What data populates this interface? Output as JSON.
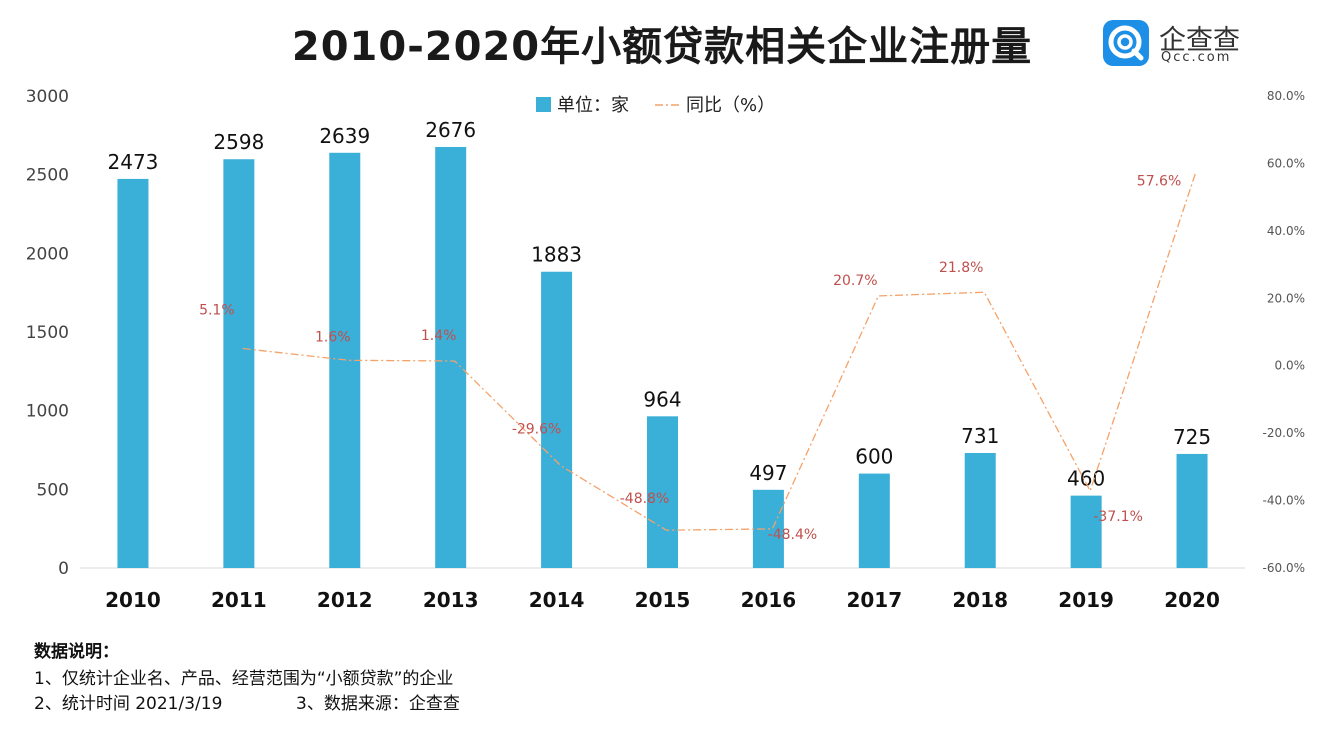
{
  "title": "2010-2020年小额贷款相关企业注册量",
  "logo": {
    "name": "企查查",
    "domain": "Qcc.com"
  },
  "chart_data": {
    "type": "bar",
    "title": "2010-2020年小额贷款相关企业注册量",
    "categories": [
      "2010",
      "2011",
      "2012",
      "2013",
      "2014",
      "2015",
      "2016",
      "2017",
      "2018",
      "2019",
      "2020"
    ],
    "series": [
      {
        "name": "单位：家",
        "type": "bar",
        "axis": "left",
        "color": "#3aafd8",
        "values": [
          2473,
          2598,
          2639,
          2676,
          1883,
          964,
          497,
          600,
          731,
          460,
          725
        ],
        "labels": [
          "2473",
          "2598",
          "2639",
          "2676",
          "1883",
          "964",
          "497",
          "600",
          "731",
          "460",
          "725"
        ]
      },
      {
        "name": "同比（%）",
        "type": "line",
        "axis": "right",
        "color": "#f4a26a",
        "label_color": "#c0504d",
        "line_style": "dash-dot",
        "x": [
          "2011",
          "2012",
          "2013",
          "2014",
          "2015",
          "2016",
          "2017",
          "2018",
          "2019",
          "2020"
        ],
        "values": [
          5.1,
          1.6,
          1.4,
          -29.6,
          -48.8,
          -48.4,
          20.7,
          21.8,
          -37.1,
          57.6
        ],
        "labels": [
          "5.1%",
          "1.6%",
          "1.4%",
          "-29.6%",
          "-48.8%",
          "-48.4%",
          "20.7%",
          "21.8%",
          "-37.1%",
          "57.6%"
        ]
      }
    ],
    "y_left": {
      "range": [
        0,
        3000
      ],
      "ticks": [
        "0",
        "500",
        "1000",
        "1500",
        "2000",
        "2500",
        "3000"
      ]
    },
    "y_right": {
      "range": [
        -60,
        80
      ],
      "ticks": [
        "-60.0%",
        "-40.0%",
        "-20.0%",
        "0.0%",
        "20.0%",
        "40.0%",
        "60.0%",
        "80.0%"
      ]
    },
    "grid": false,
    "legend": "top-center"
  },
  "notes": {
    "heading": "数据说明：",
    "line1": "1、仅统计企业名、产品、经营范围为“小额贷款”的企业",
    "line2": "2、统计时间 2021/3/19",
    "line3": "3、数据来源：企查查"
  }
}
